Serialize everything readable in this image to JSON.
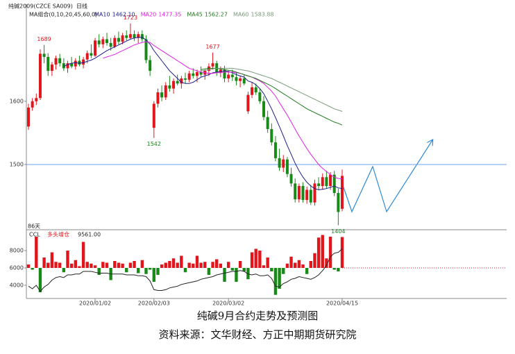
{
  "chart_data": {
    "type": "candlestick",
    "title": "纯碱2009(CZCE SA009)",
    "period": "日线",
    "ma_title": "MA组合(0,10,20,45,60,0)",
    "period_label": "86天",
    "caption": "纯碱9月合约走势及预测图",
    "source": "资料来源：文华财经、方正中期期货研究院",
    "up_color": "#e0161c",
    "down_color": "#178a17",
    "ylim": [
      1398,
      1749
    ],
    "yticks": [
      1500,
      1600
    ],
    "hline": 1500,
    "categories": [
      null,
      null,
      null,
      null,
      null,
      null,
      null,
      null,
      null,
      null,
      null,
      null,
      null,
      null,
      null,
      null,
      null,
      "2020/01/02",
      null,
      null,
      null,
      null,
      null,
      null,
      null,
      null,
      null,
      null,
      null,
      null,
      null,
      null,
      "2020/02/03",
      null,
      null,
      null,
      null,
      null,
      null,
      null,
      null,
      null,
      null,
      null,
      null,
      null,
      null,
      null,
      null,
      null,
      null,
      "2020/03/02",
      null,
      null,
      null,
      null,
      null,
      null,
      null,
      null,
      null,
      null,
      null,
      null,
      null,
      null,
      null,
      null,
      null,
      null,
      null,
      null,
      null,
      null,
      null,
      null,
      null,
      null,
      null,
      null,
      "2020/04/15"
    ],
    "ohlc": [
      [
        1560,
        1596,
        1555,
        1590
      ],
      [
        1590,
        1605,
        1585,
        1600
      ],
      [
        1600,
        1612,
        1594,
        1605
      ],
      [
        1605,
        1682,
        1602,
        1675
      ],
      [
        1675,
        1689,
        1660,
        1670
      ],
      [
        1670,
        1676,
        1640,
        1648
      ],
      [
        1648,
        1662,
        1640,
        1658
      ],
      [
        1658,
        1672,
        1650,
        1668
      ],
      [
        1668,
        1675,
        1655,
        1660
      ],
      [
        1660,
        1668,
        1648,
        1652
      ],
      [
        1652,
        1664,
        1645,
        1660
      ],
      [
        1660,
        1670,
        1652,
        1655
      ],
      [
        1655,
        1668,
        1650,
        1664
      ],
      [
        1664,
        1672,
        1655,
        1658
      ],
      [
        1658,
        1670,
        1652,
        1666
      ],
      [
        1666,
        1680,
        1660,
        1676
      ],
      [
        1676,
        1690,
        1668,
        1672
      ],
      [
        1672,
        1700,
        1670,
        1696
      ],
      [
        1696,
        1706,
        1685,
        1690
      ],
      [
        1690,
        1702,
        1684,
        1698
      ],
      [
        1698,
        1708,
        1688,
        1692
      ],
      [
        1692,
        1700,
        1680,
        1686
      ],
      [
        1686,
        1704,
        1684,
        1700
      ],
      [
        1700,
        1710,
        1690,
        1694
      ],
      [
        1694,
        1708,
        1690,
        1704
      ],
      [
        1704,
        1712,
        1696,
        1700
      ],
      [
        1700,
        1723,
        1698,
        1706
      ],
      [
        1706,
        1712,
        1695,
        1700
      ],
      [
        1700,
        1710,
        1692,
        1706
      ],
      [
        1706,
        1712,
        1694,
        1698
      ],
      [
        1698,
        1704,
        1660,
        1665
      ],
      [
        1665,
        1672,
        1640,
        1648
      ],
      [
        1558,
        1600,
        1542,
        1596
      ],
      [
        1596,
        1620,
        1590,
        1614
      ],
      [
        1614,
        1625,
        1600,
        1606
      ],
      [
        1606,
        1630,
        1602,
        1625
      ],
      [
        1625,
        1640,
        1615,
        1620
      ],
      [
        1620,
        1636,
        1612,
        1632
      ],
      [
        1632,
        1642,
        1625,
        1628
      ],
      [
        1628,
        1640,
        1620,
        1636
      ],
      [
        1636,
        1645,
        1628,
        1634
      ],
      [
        1634,
        1648,
        1630,
        1644
      ],
      [
        1644,
        1652,
        1636,
        1640
      ],
      [
        1640,
        1650,
        1630,
        1646
      ],
      [
        1646,
        1655,
        1638,
        1642
      ],
      [
        1642,
        1650,
        1634,
        1648
      ],
      [
        1648,
        1660,
        1640,
        1655
      ],
      [
        1655,
        1677,
        1650,
        1660
      ],
      [
        1660,
        1664,
        1640,
        1645
      ],
      [
        1645,
        1655,
        1638,
        1650
      ],
      [
        1650,
        1656,
        1630,
        1636
      ],
      [
        1636,
        1648,
        1630,
        1642
      ],
      [
        1642,
        1650,
        1632,
        1638
      ],
      [
        1638,
        1646,
        1625,
        1632
      ],
      [
        1632,
        1640,
        1622,
        1636
      ],
      [
        1636,
        1642,
        1625,
        1628
      ],
      [
        1584,
        1615,
        1580,
        1610
      ],
      [
        1610,
        1630,
        1605,
        1622
      ],
      [
        1622,
        1628,
        1610,
        1614
      ],
      [
        1614,
        1620,
        1596,
        1600
      ],
      [
        1600,
        1608,
        1570,
        1575
      ],
      [
        1575,
        1585,
        1550,
        1556
      ],
      [
        1556,
        1565,
        1530,
        1535
      ],
      [
        1535,
        1545,
        1505,
        1510
      ],
      [
        1510,
        1525,
        1490,
        1495
      ],
      [
        1495,
        1515,
        1488,
        1508
      ],
      [
        1508,
        1512,
        1480,
        1485
      ],
      [
        1485,
        1495,
        1465,
        1470
      ],
      [
        1470,
        1478,
        1440,
        1445
      ],
      [
        1445,
        1470,
        1440,
        1466
      ],
      [
        1466,
        1472,
        1440,
        1444
      ],
      [
        1444,
        1465,
        1438,
        1460
      ],
      [
        1460,
        1468,
        1436,
        1440
      ],
      [
        1440,
        1476,
        1435,
        1470
      ],
      [
        1470,
        1480,
        1460,
        1466
      ],
      [
        1466,
        1486,
        1460,
        1480
      ],
      [
        1480,
        1490,
        1462,
        1466
      ],
      [
        1466,
        1488,
        1460,
        1484
      ],
      [
        1484,
        1490,
        1450,
        1455
      ],
      [
        1455,
        1462,
        1404,
        1425
      ],
      [
        1430,
        1492,
        1426,
        1482
      ]
    ],
    "series": [
      {
        "name": "MA10",
        "color": "#1c1c8c",
        "value_label": "1462.10",
        "values": [
          null,
          null,
          null,
          null,
          null,
          null,
          null,
          null,
          null,
          1655,
          1658,
          1660,
          1661,
          1660,
          1661,
          1663,
          1665,
          1668,
          1672,
          1676,
          1680,
          1683,
          1686,
          1689,
          1692,
          1695,
          1698,
          1700,
          1701,
          1701,
          1697,
          1690,
          1680,
          1672,
          1664,
          1656,
          1648,
          1642,
          1636,
          1630,
          1628,
          1628,
          1630,
          1634,
          1638,
          1640,
          1642,
          1645,
          1646,
          1647,
          1648,
          1647,
          1645,
          1642,
          1640,
          1638,
          1632,
          1630,
          1626,
          1620,
          1612,
          1600,
          1588,
          1574,
          1560,
          1545,
          1530,
          1516,
          1502,
          1490,
          1480,
          1472,
          1466,
          1462,
          1460,
          1461,
          1462,
          1464,
          1466,
          1463,
          1462.1
        ]
      },
      {
        "name": "MA20",
        "color": "#e020e0",
        "value_label": "1477.35",
        "values": [
          null,
          null,
          null,
          null,
          null,
          null,
          null,
          null,
          null,
          null,
          null,
          null,
          null,
          null,
          null,
          null,
          null,
          null,
          null,
          1668,
          1670,
          1672,
          1674,
          1677,
          1680,
          1683,
          1686,
          1689,
          1691,
          1693,
          1694,
          1693,
          1688,
          1684,
          1680,
          1676,
          1672,
          1668,
          1664,
          1660,
          1656,
          1652,
          1650,
          1648,
          1646,
          1645,
          1644,
          1644,
          1645,
          1645,
          1646,
          1646,
          1646,
          1645,
          1644,
          1642,
          1640,
          1638,
          1635,
          1632,
          1628,
          1622,
          1616,
          1608,
          1598,
          1588,
          1578,
          1567,
          1556,
          1545,
          1535,
          1525,
          1516,
          1508,
          1500,
          1494,
          1489,
          1484,
          1480,
          1478,
          1477.35
        ]
      },
      {
        "name": "MA45",
        "color": "#1f7a1f",
        "value_label": "1562.27",
        "values": [
          null,
          null,
          null,
          null,
          null,
          null,
          null,
          null,
          null,
          null,
          null,
          null,
          null,
          null,
          null,
          null,
          null,
          null,
          null,
          null,
          null,
          null,
          null,
          null,
          null,
          null,
          null,
          null,
          null,
          null,
          null,
          null,
          null,
          null,
          null,
          null,
          null,
          null,
          null,
          null,
          null,
          null,
          null,
          null,
          1650,
          1651,
          1652,
          1652,
          1652,
          1651,
          1650,
          1649,
          1648,
          1646,
          1644,
          1642,
          1640,
          1638,
          1636,
          1633,
          1630,
          1627,
          1624,
          1620,
          1616,
          1612,
          1608,
          1604,
          1600,
          1596,
          1592,
          1588,
          1585,
          1582,
          1579,
          1576,
          1573,
          1570,
          1567,
          1565,
          1562.27
        ]
      },
      {
        "name": "MA60",
        "color": "#7a9a7a",
        "value_label": "1583.88",
        "values": [
          null,
          null,
          null,
          null,
          null,
          null,
          null,
          null,
          null,
          null,
          null,
          null,
          null,
          null,
          null,
          null,
          null,
          null,
          null,
          null,
          null,
          null,
          null,
          null,
          null,
          null,
          null,
          null,
          null,
          null,
          null,
          null,
          null,
          null,
          null,
          null,
          null,
          null,
          null,
          null,
          null,
          null,
          null,
          null,
          1648,
          1649,
          1650,
          1651,
          1652,
          1652,
          1652,
          1652,
          1652,
          1651,
          1650,
          1649,
          1648,
          1646,
          1644,
          1642,
          1640,
          1638,
          1636,
          1633,
          1630,
          1627,
          1624,
          1621,
          1618,
          1615,
          1612,
          1609,
          1606,
          1603,
          1600,
          1597,
          1594,
          1591,
          1588,
          1586,
          1583.88
        ]
      }
    ],
    "volume": {
      "ylim": [
        2640,
        10320
      ],
      "yticks": [
        4000,
        6000,
        8000
      ],
      "reference_line": 6000,
      "line_name": "CCL",
      "line_color": "#222222",
      "line_values": [
        3900,
        3600,
        4000,
        3300,
        3800,
        4100,
        4600,
        4900,
        5000,
        4900,
        5200,
        5200,
        5300,
        5300,
        5600,
        5600,
        5600,
        5500,
        5400,
        5400,
        5400,
        5300,
        5300,
        5300,
        5300,
        5200,
        5200,
        5200,
        5100,
        5100,
        5000,
        4500,
        3500,
        3400,
        3400,
        3500,
        3700,
        3800,
        3900,
        4100,
        4200,
        4300,
        4400,
        4500,
        4700,
        4800,
        4900,
        5000,
        5200,
        5300,
        5400,
        5500,
        5600,
        5600,
        5700,
        5600,
        5300,
        5200,
        5300,
        5100,
        5100,
        5200,
        4800,
        3900,
        3800,
        4200,
        4400,
        4700,
        4800,
        5000,
        4900,
        4800,
        4700,
        4900,
        5200,
        5700,
        6300,
        7300,
        7700,
        7800,
        8200
      ],
      "bar_name": "多头增仓",
      "bar_value_label": "9561.00",
      "bar_values": [
        6400,
        5800,
        9600,
        3200,
        7200,
        6600,
        7800,
        6700,
        6600,
        5500,
        8000,
        6500,
        6900,
        6200,
        9000,
        6700,
        6500,
        6300,
        5200,
        6700,
        6600,
        4600,
        6800,
        6600,
        6500,
        5500,
        6600,
        6800,
        5400,
        6900,
        5300,
        5800,
        4400,
        5200,
        6400,
        6600,
        6800,
        7100,
        6600,
        7400,
        5500,
        6600,
        6500,
        7400,
        6600,
        6700,
        5200,
        6700,
        7000,
        6500,
        4400,
        6700,
        5700,
        4400,
        6800,
        5600,
        4700,
        7800,
        8200,
        8000,
        6300,
        7200,
        5600,
        2900,
        3600,
        5300,
        6500,
        7300,
        6600,
        6900,
        6400,
        5300,
        6800,
        7700,
        9500,
        9800,
        7100,
        9600,
        5800,
        5600,
        9561
      ]
    }
  }
}
